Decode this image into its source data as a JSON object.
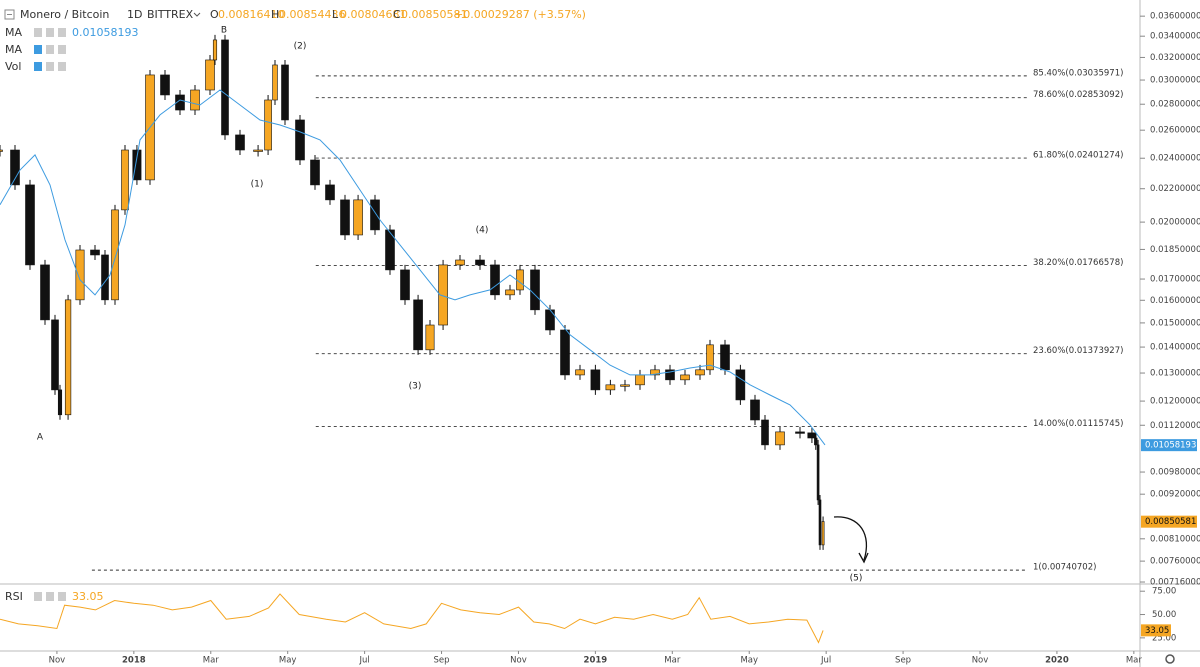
{
  "header": {
    "symbol": "Monero / Bitcoin",
    "interval": "1D",
    "exchange": "BITTREX",
    "ohlc": [
      {
        "key": "O",
        "value": "0.00816410"
      },
      {
        "key": "H",
        "value": "0.00854436"
      },
      {
        "key": "L",
        "value": "0.00804681"
      },
      {
        "key": "C",
        "value": "0.00850581"
      }
    ],
    "change": "+0.00029287 (+3.57%)",
    "indicators": [
      {
        "name": "MA",
        "value": 0.01058193
      },
      {
        "name": "MA"
      },
      {
        "name": "Vol"
      }
    ]
  },
  "chart_data": [
    {
      "type": "candlestick",
      "log": true,
      "grid": false,
      "color_up": "#f5a623",
      "color_down": "#111111",
      "x": [
        -1.48,
        -1.09,
        -0.7,
        -0.31,
        -0.05,
        0.08,
        0.29,
        0.6,
        0.99,
        1.25,
        1.51,
        1.77,
        2.08,
        2.42,
        2.81,
        3.2,
        3.59,
        3.98,
        4.11,
        4.37,
        4.76,
        5.23,
        5.49,
        5.67,
        5.93,
        6.32,
        6.71,
        7.1,
        7.49,
        7.83,
        8.27,
        8.66,
        9.05,
        9.39,
        9.7,
        10.04,
        10.48,
        11.0,
        11.39,
        11.78,
        12.04,
        12.43,
        12.82,
        13.21,
        13.6,
        14.0,
        14.39,
        14.77,
        15.16,
        15.55,
        15.94,
        16.33,
        16.72,
        16.98,
        17.37,
        17.77,
        18.15,
        18.41,
        18.8,
        19.32,
        19.63,
        19.73,
        19.79,
        19.84,
        19.92
      ],
      "values": [
        0.02457,
        0.02224,
        0.0177,
        0.01513,
        0.01239,
        0.01154,
        0.01602,
        0.01847,
        0.01821,
        0.01602,
        0.02071,
        0.02457,
        0.02256,
        0.03044,
        0.02875,
        0.02754,
        0.02916,
        0.03177,
        0.03364,
        0.02565,
        0.02457,
        0.02457,
        0.02834,
        0.03132,
        0.02677,
        0.02388,
        0.02224,
        0.02131,
        0.01928,
        0.02131,
        0.01956,
        0.01745,
        0.01602,
        0.01389,
        0.01491,
        0.0177,
        0.01795,
        0.0177,
        0.01625,
        0.01648,
        0.01745,
        0.01557,
        0.0147,
        0.01293,
        0.01312,
        0.01239,
        0.01257,
        0.01257,
        0.01293,
        0.01312,
        0.01275,
        0.01293,
        0.01312,
        0.01409,
        0.01312,
        0.01204,
        0.01137,
        0.01059,
        0.01099,
        0.01096,
        0.0108,
        0.01059,
        0.00905,
        0.00796,
        0.00851
      ],
      "ma": {
        "name": "MA",
        "color": "#3d9be0",
        "x": [
          -1.48,
          -0.96,
          -0.57,
          -0.18,
          0.21,
          0.6,
          0.99,
          1.38,
          1.77,
          2.16,
          2.68,
          3.2,
          3.72,
          4.24,
          4.76,
          5.28,
          5.8,
          6.32,
          6.84,
          7.36,
          7.88,
          8.4,
          8.92,
          9.44,
          9.96,
          10.35,
          10.74,
          11.26,
          11.78,
          12.3,
          12.82,
          13.34,
          13.86,
          14.38,
          14.9,
          15.42,
          15.94,
          16.46,
          16.98,
          17.5,
          18.02,
          18.54,
          19.06,
          19.58,
          19.97
        ],
        "values": [
          0.02101,
          0.02321,
          0.02423,
          0.02224,
          0.01901,
          0.01696,
          0.01625,
          0.0172,
          0.01984,
          0.02529,
          0.02716,
          0.02834,
          0.02794,
          0.02916,
          0.02794,
          0.02677,
          0.02639,
          0.02587,
          0.02529,
          0.02388,
          0.02192,
          0.02012,
          0.01874,
          0.01745,
          0.01625,
          0.01602,
          0.01625,
          0.01648,
          0.0172,
          0.01648,
          0.01557,
          0.0145,
          0.01389,
          0.0133,
          0.01293,
          0.01293,
          0.01304,
          0.01319,
          0.0133,
          0.01304,
          0.01257,
          0.01221,
          0.01187,
          0.01121,
          0.01059
        ]
      },
      "xlim": [
        -1.48,
        28.16
      ],
      "xticks": [
        {
          "value": 0,
          "label": "Nov"
        },
        {
          "value": 2,
          "label": "2018"
        },
        {
          "value": 4,
          "label": "Mar"
        },
        {
          "value": 6,
          "label": "May"
        },
        {
          "value": 8,
          "label": "Jul"
        },
        {
          "value": 10,
          "label": "Sep"
        },
        {
          "value": 12,
          "label": "Nov"
        },
        {
          "value": 14,
          "label": "2019"
        },
        {
          "value": 16,
          "label": "Mar"
        },
        {
          "value": 18,
          "label": "May"
        },
        {
          "value": 20,
          "label": "Jul"
        },
        {
          "value": 22,
          "label": "Sep"
        },
        {
          "value": 24,
          "label": "Nov"
        },
        {
          "value": 26,
          "label": "2020"
        },
        {
          "value": 28,
          "label": "Mar"
        }
      ],
      "ylim": [
        0.00714,
        0.0377
      ],
      "yticks": [
        {
          "value": 0.036,
          "label": "0.03600000"
        },
        {
          "value": 0.034,
          "label": "0.03400000"
        },
        {
          "value": 0.032,
          "label": "0.03200000"
        },
        {
          "value": 0.03,
          "label": "0.03000000"
        },
        {
          "value": 0.028,
          "label": "0.02800000"
        },
        {
          "value": 0.026,
          "label": "0.02600000"
        },
        {
          "value": 0.024,
          "label": "0.02400000"
        },
        {
          "value": 0.022,
          "label": "0.02200000"
        },
        {
          "value": 0.02,
          "label": "0.02000000"
        },
        {
          "value": 0.0185,
          "label": "0.01850000"
        },
        {
          "value": 0.017,
          "label": "0.01700000"
        },
        {
          "value": 0.016,
          "label": "0.01600000"
        },
        {
          "value": 0.015,
          "label": "0.01500000"
        },
        {
          "value": 0.014,
          "label": "0.01400000"
        },
        {
          "value": 0.013,
          "label": "0.01300000"
        },
        {
          "value": 0.012,
          "label": "0.01200000"
        },
        {
          "value": 0.0112,
          "label": "0.01120000"
        },
        {
          "value": 0.0098,
          "label": "0.00980000"
        },
        {
          "value": 0.0092,
          "label": "0.00920000"
        },
        {
          "value": 0.0081,
          "label": "0.00810000"
        },
        {
          "value": 0.0076,
          "label": "0.00760000"
        },
        {
          "value": 0.00716,
          "label": "0.00716000"
        }
      ],
      "levels": [
        {
          "label": "85.40%(0.03035971)",
          "value": 0.03035971,
          "x_start": 6.73
        },
        {
          "label": "78.60%(0.02853092)",
          "value": 0.02853092,
          "x_start": 6.73
        },
        {
          "label": "61.80%(0.02401274)",
          "value": 0.02401274,
          "x_start": 6.73
        },
        {
          "label": "38.20%(0.01766578)",
          "value": 0.01766578,
          "x_start": 6.73
        },
        {
          "label": "23.60%(0.01373927)",
          "value": 0.01373927,
          "x_start": 6.73
        },
        {
          "label": "14.00%(0.01115745)",
          "value": 0.01115745,
          "x_start": 6.73
        },
        {
          "label": "1(0.00740702)",
          "value": 0.00740702,
          "x_start": 0.91
        }
      ],
      "annotations": [
        "A",
        "B",
        "(1)",
        "(2)",
        "(3)",
        "(4)",
        "(5)"
      ]
    },
    {
      "type": "line",
      "name": "RSI",
      "color": "#f5a623",
      "x": [
        -1.48,
        -1.0,
        -0.5,
        0,
        0.2,
        0.6,
        1.0,
        1.5,
        2.0,
        2.5,
        3.0,
        3.5,
        4.0,
        4.4,
        5.0,
        5.5,
        5.8,
        6.3,
        7.0,
        7.5,
        8.0,
        8.5,
        9.2,
        9.6,
        10.0,
        10.5,
        11.0,
        11.5,
        12.0,
        12.4,
        12.8,
        13.2,
        13.6,
        14.0,
        14.5,
        15.0,
        15.5,
        16.0,
        16.4,
        16.7,
        17.0,
        17.5,
        18.0,
        18.5,
        19.0,
        19.5,
        19.8,
        19.92
      ],
      "values": [
        45,
        40,
        38,
        35,
        60,
        58,
        55,
        65,
        62,
        60,
        55,
        58,
        65,
        45,
        48,
        57,
        72,
        50,
        45,
        42,
        52,
        40,
        35,
        40,
        62,
        55,
        52,
        50,
        58,
        42,
        40,
        35,
        45,
        40,
        47,
        45,
        50,
        45,
        50,
        68,
        45,
        48,
        40,
        42,
        45,
        44,
        20,
        33.05
      ],
      "ylim": [
        12,
        79.5
      ],
      "yticks": [
        {
          "value": 75,
          "label": "75.00"
        },
        {
          "value": 50,
          "label": "50.00"
        },
        {
          "value": 25,
          "label": "25.00"
        }
      ]
    }
  ]
}
